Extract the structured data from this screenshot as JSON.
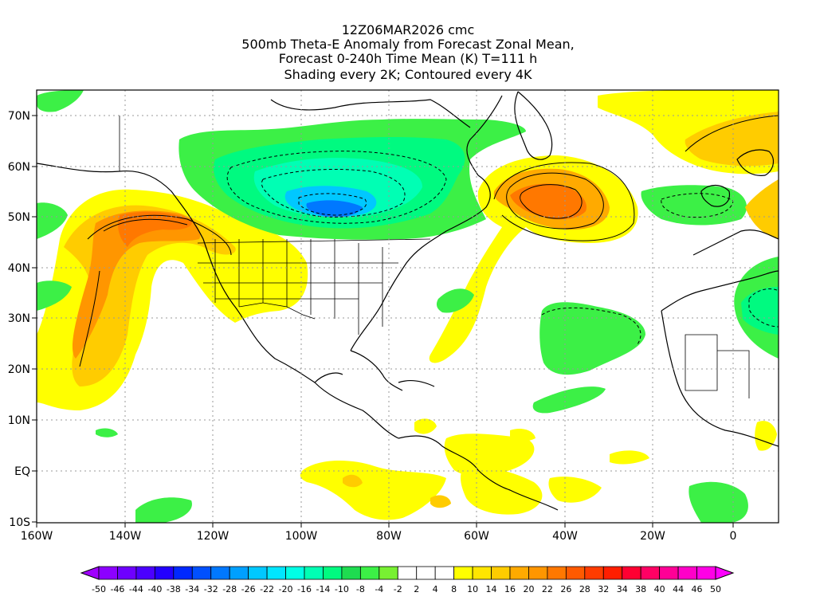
{
  "title": {
    "line1": "12Z06MAR2026 cmc",
    "line2": "500mb Theta-E Anomaly from Forecast Zonal Mean,",
    "line3": "Forecast 0-240h Time Mean (K) T=111 h",
    "line4": "Shading every 2K; Contoured every 4K"
  },
  "map": {
    "lat_labels": [
      "70N",
      "60N",
      "50N",
      "40N",
      "30N",
      "20N",
      "10N",
      "EQ",
      "10S"
    ],
    "lon_labels": [
      "160W",
      "140W",
      "120W",
      "100W",
      "80W",
      "60W",
      "40W",
      "20W",
      "0"
    ]
  },
  "colorbar": {
    "labels": [
      "-50",
      "-46",
      "-44",
      "-40",
      "-38",
      "-34",
      "-32",
      "-28",
      "-26",
      "-22",
      "-20",
      "-16",
      "-14",
      "-10",
      "-8",
      "-4",
      "-2",
      "2",
      "4",
      "8",
      "10",
      "14",
      "16",
      "20",
      "22",
      "26",
      "28",
      "32",
      "34",
      "38",
      "40",
      "44",
      "46",
      "50"
    ],
    "colors": [
      "#a000ff",
      "#8c00ff",
      "#6e00ff",
      "#4b00ff",
      "#2300ff",
      "#0028ff",
      "#0050ff",
      "#0078ff",
      "#00a0ff",
      "#00c8ff",
      "#00e6ff",
      "#00ffe6",
      "#00ffb4",
      "#00fa80",
      "#1edc50",
      "#3cf046",
      "#78f032",
      "#ffffff",
      "#ffffff",
      "#ffffff",
      "#ffff00",
      "#ffe600",
      "#ffcc00",
      "#ffaa00",
      "#ff9600",
      "#ff7800",
      "#ff5a00",
      "#ff3c00",
      "#ff1e00",
      "#ff0032",
      "#ff0064",
      "#ff0096",
      "#ff00c8",
      "#ff00e6",
      "#ff00ff"
    ]
  }
}
